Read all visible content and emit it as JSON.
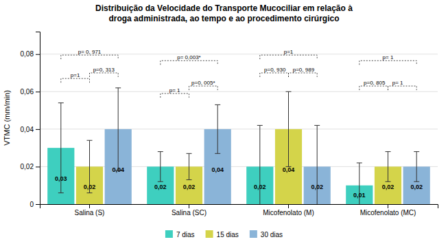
{
  "chart_data": {
    "type": "bar",
    "title": "Distribuição da Velocidade do Transporte Mucociliar em relação à",
    "subtitle": "droga administrada, ao tempo e ao procedimento cirúrgico",
    "ylabel": "VTMC (mm/min)",
    "categories": [
      "Salina (S)",
      "Salina (SC)",
      "Micofenolato (M)",
      "Micofenolato (MC)"
    ],
    "series": [
      {
        "name": "7 dias",
        "color": "#3ecfbf",
        "values": [
          0.03,
          0.02,
          0.02,
          0.01
        ],
        "value_labels": [
          "0,03",
          "0,02",
          "0,02",
          "0,01"
        ],
        "errors": [
          0.024,
          0.008,
          0.022,
          0.012
        ]
      },
      {
        "name": "15 dias",
        "color": "#d4d44a",
        "values": [
          0.02,
          0.02,
          0.04,
          0.02
        ],
        "value_labels": [
          "0,02",
          "0,02",
          "0,04",
          "0,02"
        ],
        "errors": [
          0.014,
          0.007,
          0.02,
          0.008
        ]
      },
      {
        "name": "30 dias",
        "color": "#8ab4d8",
        "values": [
          0.04,
          0.04,
          0.02,
          0.02
        ],
        "value_labels": [
          "0,04",
          "0,04",
          "0,02",
          "0,02"
        ],
        "errors": [
          0.022,
          0.013,
          0.022,
          0.008
        ]
      }
    ],
    "data_labels": true,
    "ylim": [
      0,
      0.092
    ],
    "yticks": [
      0,
      {
        "value": 0.02,
        "label": "0,02"
      },
      {
        "value": 0.04,
        "label": "0,04"
      },
      {
        "value": 0.06,
        "label": "0,06"
      },
      {
        "value": 0.08,
        "label": "0,08"
      }
    ],
    "grid": true,
    "legend": "bottom",
    "annotations": [
      {
        "group": 0,
        "from": 0,
        "to": 2,
        "y": 0.0795,
        "label": "p= 0, 971",
        "align": "center"
      },
      {
        "group": 0,
        "from": 0,
        "to": 1,
        "y": 0.067,
        "label": "p=1",
        "align": "center"
      },
      {
        "group": 0,
        "from": 1,
        "to": 2,
        "y": 0.07,
        "label": "p=0, 313",
        "align": "center"
      },
      {
        "group": 1,
        "from": 0,
        "to": 2,
        "y": 0.0765,
        "label": "p= 0,003*",
        "align": "center"
      },
      {
        "group": 1,
        "from": 0,
        "to": 1,
        "y": 0.059,
        "label": "p= 1",
        "align": "center"
      },
      {
        "group": 1,
        "from": 1,
        "to": 2,
        "y": 0.063,
        "label": "p=0, 005*",
        "align": "center"
      },
      {
        "group": 2,
        "from": 0,
        "to": 2,
        "y": 0.0795,
        "label": "p=1",
        "align": "center"
      },
      {
        "group": 2,
        "from": 0,
        "to": 1,
        "y": 0.07,
        "label": "p=0, 930",
        "align": "left"
      },
      {
        "group": 2,
        "from": 1,
        "to": 2,
        "y": 0.07,
        "label": "p=0, 989",
        "align": "left"
      },
      {
        "group": 3,
        "from": 0,
        "to": 2,
        "y": 0.0765,
        "label": "p= 1",
        "align": "center"
      },
      {
        "group": 3,
        "from": 0,
        "to": 1,
        "y": 0.063,
        "label": "p=0, 805",
        "align": "left"
      },
      {
        "group": 3,
        "from": 1,
        "to": 2,
        "y": 0.063,
        "label": "p= 1",
        "align": "left"
      }
    ]
  }
}
